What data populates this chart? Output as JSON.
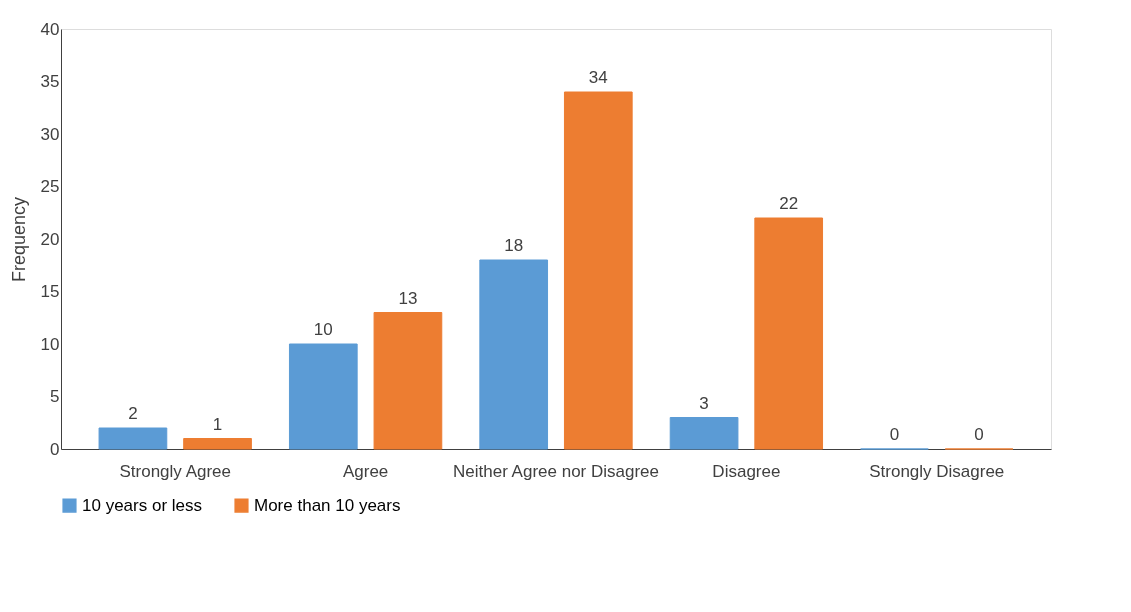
{
  "chart_data": {
    "type": "bar",
    "ylabel": "Frequency",
    "categories": [
      "Strongly Agree",
      "Agree",
      "Neither Agree nor Disagree",
      "Disagree",
      "Strongly Disagree"
    ],
    "series": [
      {
        "name": "10 years or less",
        "color": "#5b9bd5",
        "values": [
          2,
          10,
          18,
          3,
          0
        ]
      },
      {
        "name": "More than 10 years",
        "color": "#ed7d31",
        "values": [
          1,
          13,
          34,
          22,
          0
        ]
      }
    ],
    "ylim": [
      0,
      40
    ],
    "yticks": [
      0,
      5,
      10,
      15,
      20,
      25,
      30,
      35,
      40
    ],
    "grid": false,
    "legend": "bottom",
    "data_labels": true
  }
}
